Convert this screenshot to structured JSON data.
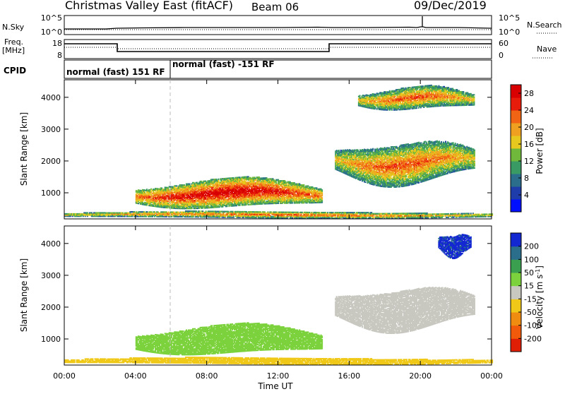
{
  "header": {
    "title": "Christmas Valley East (fitACF)",
    "beam": "Beam 06",
    "date": "09/Dec/2019"
  },
  "top_panels": {
    "nsky_label": "N.Sky",
    "nsearch_label": "N.Search",
    "nsky_ticks": [
      "10^5",
      "10^0"
    ],
    "nsearch_ticks": [
      "10^5",
      "10^0"
    ],
    "freq_label_1": "Freq.",
    "freq_label_2": "[MHz]",
    "freq_ticks": [
      "18",
      "8"
    ],
    "nave_label": "Nave",
    "nave_ticks": [
      "60",
      "0"
    ],
    "cpid_label": "CPID",
    "cpid_segments": [
      "normal (fast) 151 RF",
      "normal (fast) -151 RF"
    ]
  },
  "axes": {
    "ylabel": "Slant Range [km]",
    "yticks": [
      "1000",
      "2000",
      "3000",
      "4000"
    ],
    "xlabel": "Time UT",
    "xticks": [
      "00:00",
      "04:00",
      "08:00",
      "12:00",
      "16:00",
      "20:00",
      "00:00"
    ]
  },
  "power_bar": {
    "label": "Power [dB]",
    "ticks": [
      "4",
      "8",
      "12",
      "16",
      "20",
      "24",
      "28"
    ],
    "colors": [
      "#0010ff",
      "#1e3caa",
      "#2a6e8c",
      "#3a9a64",
      "#6fb83c",
      "#e6c81e",
      "#f0a020",
      "#f06414",
      "#e81c0a",
      "#d80000"
    ]
  },
  "velocity_bar": {
    "label": "Velocity [m s^-1]",
    "ticks": [
      "200",
      "100",
      "50",
      "15",
      "-15",
      "-50",
      "-100",
      "-200"
    ],
    "colors": [
      "#1428d2",
      "#2a6e8c",
      "#3aa050",
      "#7cd23c",
      "#c8c8c0",
      "#f0c818",
      "#f08c10",
      "#f05a0a",
      "#e01e05"
    ]
  },
  "chart_data": {
    "type": "heatmap",
    "x_range_hours": [
      0,
      24
    ],
    "y_range_km": [
      180,
      4550
    ],
    "power_regions": [
      {
        "name": "daytime near-range band",
        "t_start": 4.0,
        "t_end": 14.5,
        "range_km": [
          500,
          1400
        ],
        "peak_db": 30
      },
      {
        "name": "evening band",
        "t_start": 15.2,
        "t_end": 23.0,
        "range_km": [
          1300,
          2600
        ],
        "peak_db": 24
      },
      {
        "name": "far-range patches",
        "t_start": 16.5,
        "t_end": 23.0,
        "range_km": [
          3600,
          4300
        ],
        "peak_db": 24
      },
      {
        "name": "ground scatter near 300 km",
        "t_start": 0.0,
        "t_end": 24.0,
        "range_km": [
          200,
          400
        ],
        "peak_db": 24
      }
    ],
    "velocity_regions": [
      {
        "name": "daytime band",
        "t_start": 4.0,
        "t_end": 14.5,
        "range_km": [
          500,
          1400
        ],
        "velocity_ms": 30
      },
      {
        "name": "evening band",
        "t_start": 15.2,
        "t_end": 23.0,
        "range_km": [
          1300,
          2600
        ],
        "velocity_ms": 0
      },
      {
        "name": "far-range patch",
        "t_start": 21.0,
        "t_end": 22.8,
        "range_km": [
          3600,
          4300
        ],
        "velocity_ms": 220
      }
    ]
  }
}
